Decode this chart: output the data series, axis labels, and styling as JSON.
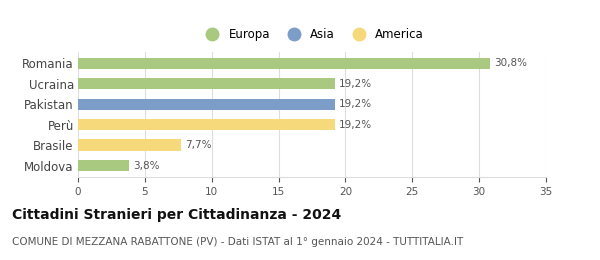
{
  "categories": [
    "Romania",
    "Ucraina",
    "Pakistan",
    "Perù",
    "Brasile",
    "Moldova"
  ],
  "values": [
    30.8,
    19.2,
    19.2,
    19.2,
    7.7,
    3.8
  ],
  "labels": [
    "30,8%",
    "19,2%",
    "19,2%",
    "19,2%",
    "7,7%",
    "3,8%"
  ],
  "colors": [
    "#a8c97f",
    "#a8c97f",
    "#7b9dc7",
    "#f5d97a",
    "#f5d97a",
    "#a8c97f"
  ],
  "legend": [
    {
      "label": "Europa",
      "color": "#a8c97f"
    },
    {
      "label": "Asia",
      "color": "#7b9dc7"
    },
    {
      "label": "America",
      "color": "#f5d97a"
    }
  ],
  "xlim": [
    0,
    35
  ],
  "xticks": [
    0,
    5,
    10,
    15,
    20,
    25,
    30,
    35
  ],
  "title": "Cittadini Stranieri per Cittadinanza - 2024",
  "subtitle": "COMUNE DI MEZZANA RABATTONE (PV) - Dati ISTAT al 1° gennaio 2024 - TUTTITALIA.IT",
  "title_fontsize": 10,
  "subtitle_fontsize": 7.5,
  "bar_height": 0.55,
  "background_color": "#ffffff",
  "grid_color": "#dddddd",
  "label_color": "#555555",
  "ytick_color": "#444444"
}
